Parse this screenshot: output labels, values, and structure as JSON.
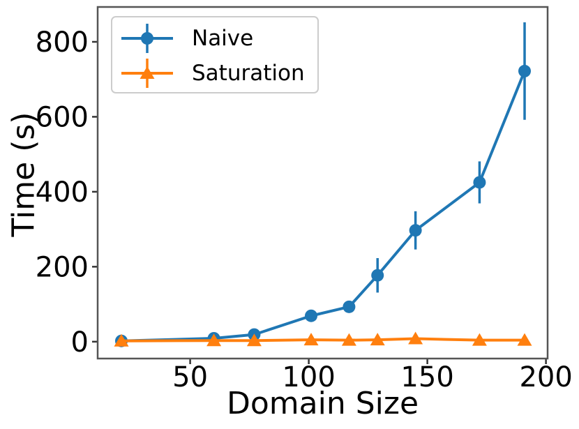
{
  "figure": {
    "background": "#ffffff",
    "frame_color": "#555555",
    "tick_color": "#333333",
    "text_color": "#000000"
  },
  "chart_data": {
    "type": "line",
    "title": "",
    "xlabel": "Domain Size",
    "ylabel": "Time (s)",
    "x": [
      21,
      60,
      77,
      101,
      117,
      129,
      145,
      172,
      191
    ],
    "series": [
      {
        "name": "Naive",
        "color": "#1f77b4",
        "marker": "circle",
        "values": [
          2,
          9,
          19,
          69,
          93,
          177,
          297,
          425,
          722
        ],
        "yerr": [
          3,
          4,
          5,
          8,
          10,
          46,
          51,
          56,
          130
        ]
      },
      {
        "name": "Saturation",
        "color": "#ff7f0e",
        "marker": "triangle_up",
        "values": [
          2,
          3,
          3,
          5,
          4,
          5,
          8,
          4,
          4
        ],
        "yerr": [
          2,
          2,
          2,
          2,
          2,
          2,
          3,
          2,
          2
        ]
      }
    ],
    "xlim": [
      11,
      200.7
    ],
    "ylim": [
      -45,
      893
    ],
    "xticks": [
      50,
      100,
      150,
      200
    ],
    "yticks": [
      0,
      200,
      400,
      600,
      800
    ],
    "grid": false,
    "legend_position": "upper left"
  }
}
